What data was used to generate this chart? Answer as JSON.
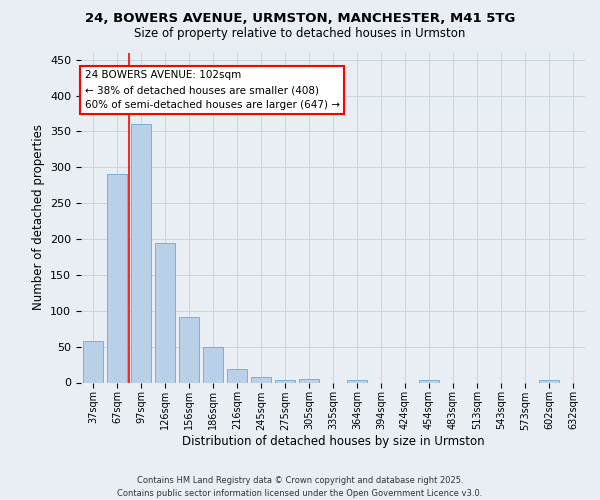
{
  "title": "24, BOWERS AVENUE, URMSTON, MANCHESTER, M41 5TG",
  "subtitle": "Size of property relative to detached houses in Urmston",
  "xlabel": "Distribution of detached houses by size in Urmston",
  "ylabel": "Number of detached properties",
  "footer_line1": "Contains HM Land Registry data © Crown copyright and database right 2025.",
  "footer_line2": "Contains public sector information licensed under the Open Government Licence v3.0.",
  "annotation_line1": "24 BOWERS AVENUE: 102sqm",
  "annotation_line2": "← 38% of detached houses are smaller (408)",
  "annotation_line3": "60% of semi-detached houses are larger (647) →",
  "bar_color": "#b8d0e8",
  "bar_edge_color": "#6aaad4",
  "grid_color": "#c8d4de",
  "background_color": "#e8eef4",
  "vline_color": "red",
  "vline_x": 1.5,
  "annotation_box_color": "red",
  "categories": [
    "37sqm",
    "67sqm",
    "97sqm",
    "126sqm",
    "156sqm",
    "186sqm",
    "216sqm",
    "245sqm",
    "275sqm",
    "305sqm",
    "335sqm",
    "364sqm",
    "394sqm",
    "424sqm",
    "454sqm",
    "483sqm",
    "513sqm",
    "543sqm",
    "573sqm",
    "602sqm",
    "632sqm"
  ],
  "values": [
    58,
    291,
    360,
    194,
    92,
    49,
    19,
    8,
    4,
    5,
    0,
    4,
    0,
    0,
    4,
    0,
    0,
    0,
    0,
    4,
    0
  ],
  "ylim": [
    0,
    460
  ],
  "yticks": [
    0,
    50,
    100,
    150,
    200,
    250,
    300,
    350,
    400,
    450
  ],
  "figsize": [
    6.0,
    5.0
  ],
  "dpi": 100
}
